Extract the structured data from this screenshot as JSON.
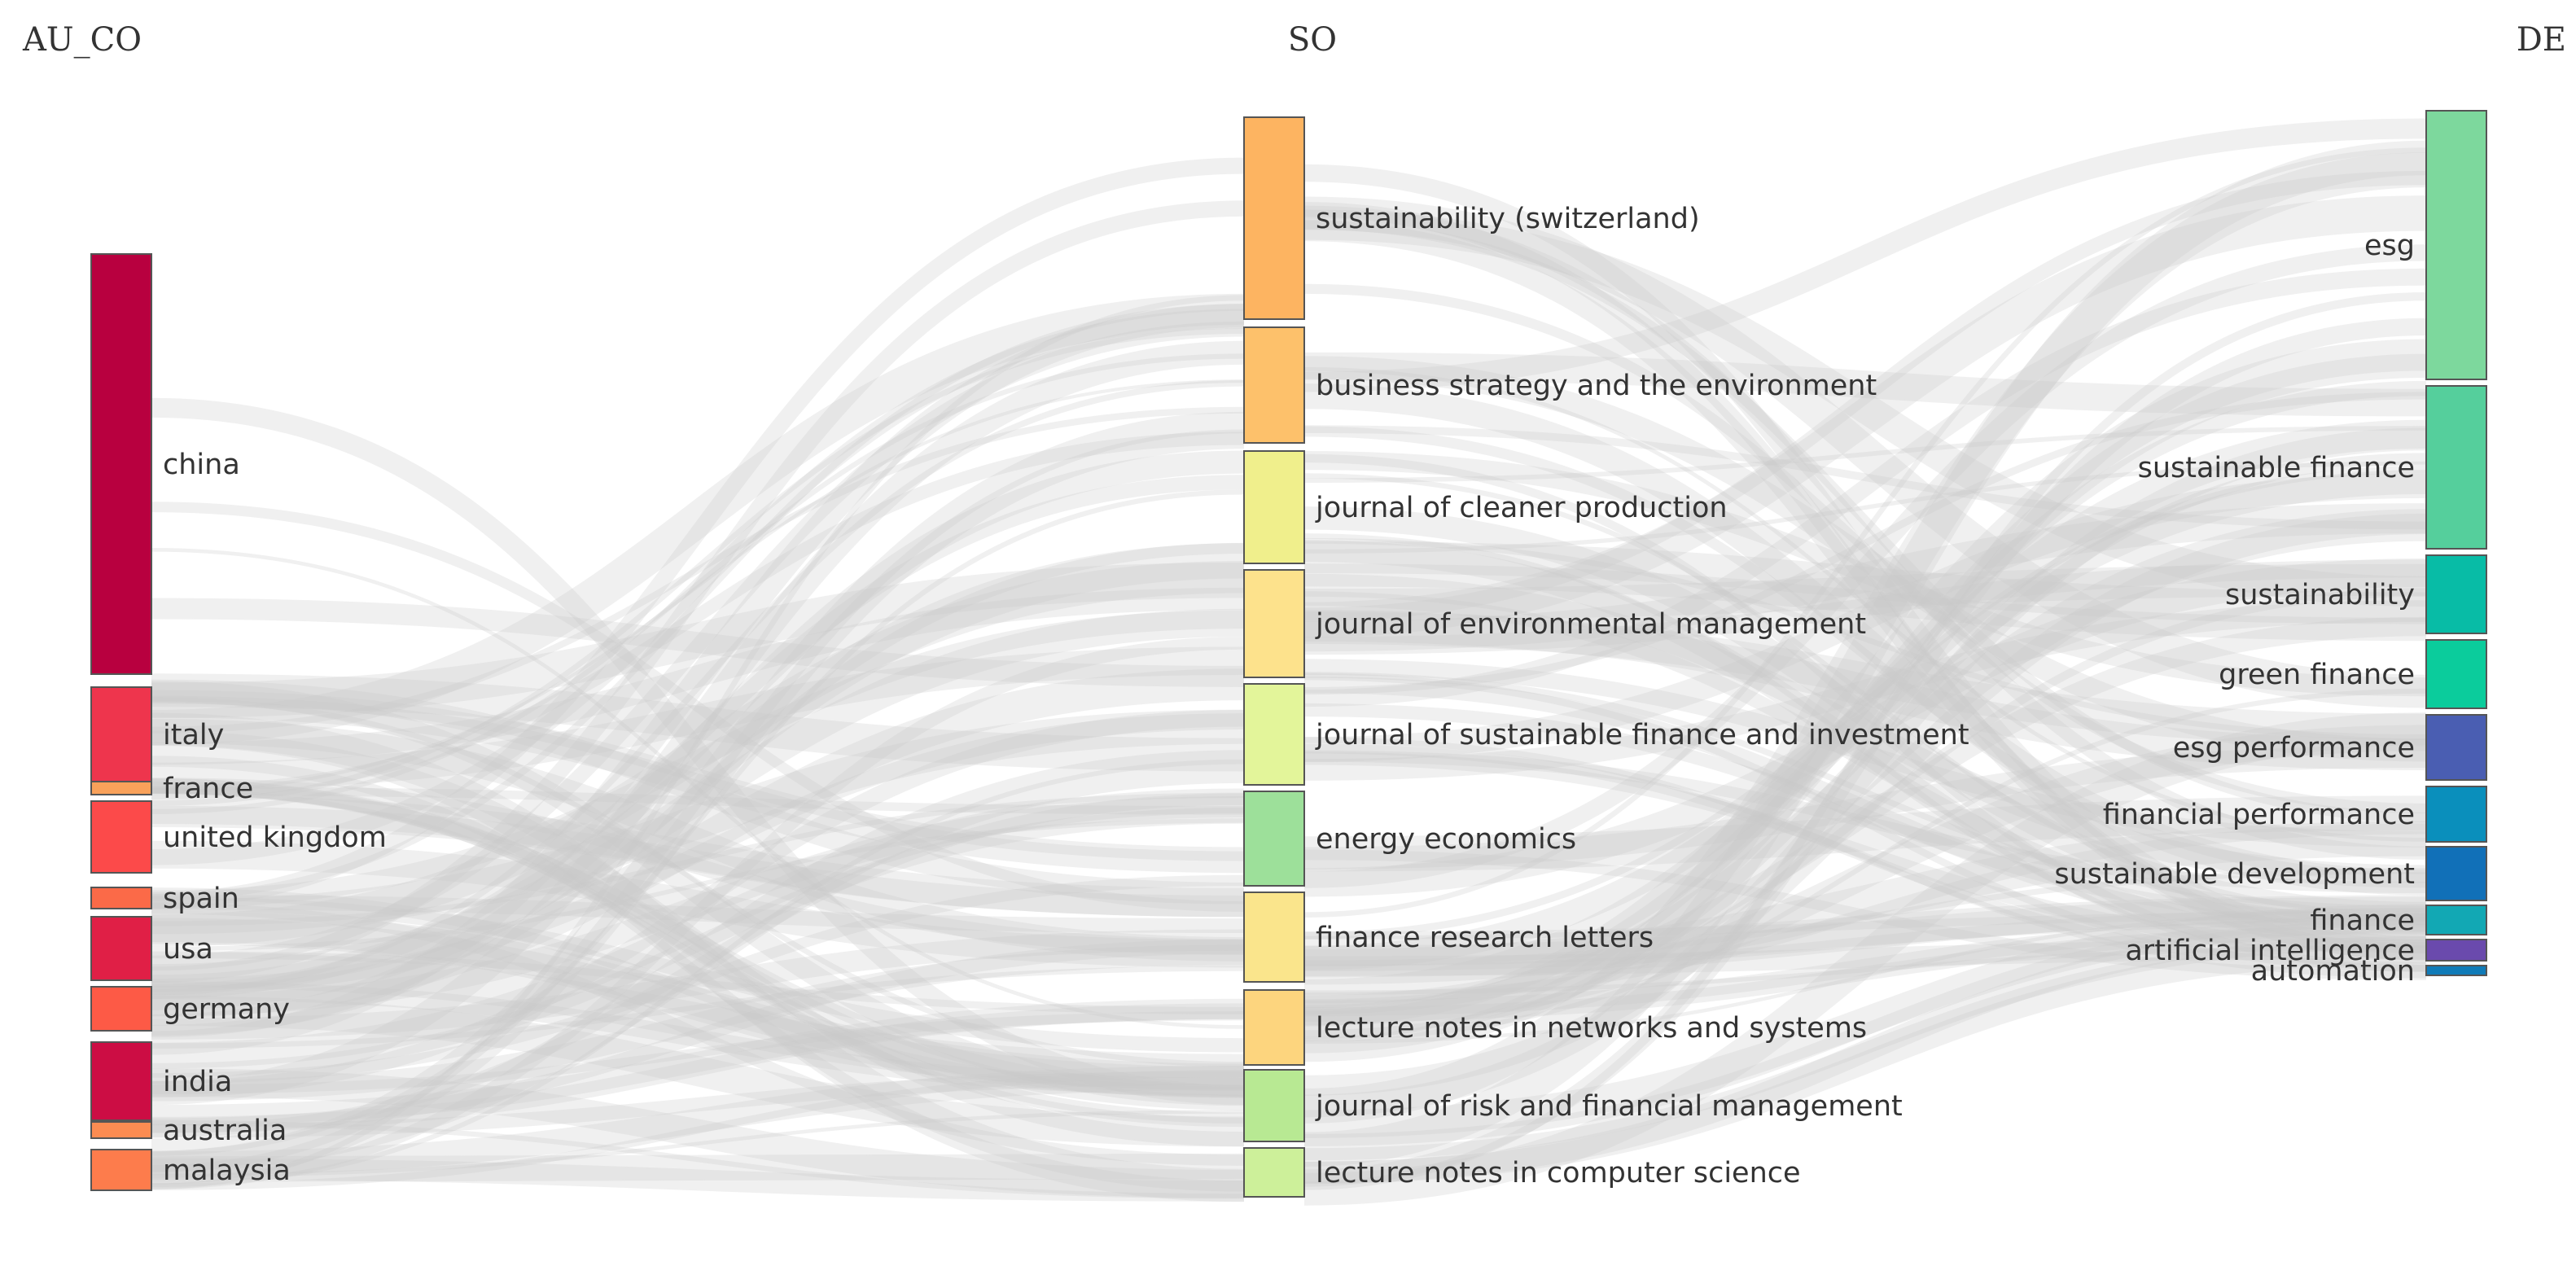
{
  "chart_data": {
    "type": "sankey",
    "columns": [
      {
        "title": "AU_CO",
        "nodes": [
          {
            "name": "china",
            "color": "#b8003f"
          },
          {
            "name": "italy",
            "color": "#ee354d"
          },
          {
            "name": "france",
            "color": "#f9a15a"
          },
          {
            "name": "united kingdom",
            "color": "#fc4a4a"
          },
          {
            "name": "spain",
            "color": "#fb6a48"
          },
          {
            "name": "usa",
            "color": "#e01f46"
          },
          {
            "name": "germany",
            "color": "#fd5a46"
          },
          {
            "name": "india",
            "color": "#cc0d44"
          },
          {
            "name": "australia",
            "color": "#fb8c52"
          },
          {
            "name": "malaysia",
            "color": "#fd7c4c"
          }
        ]
      },
      {
        "title": "SO",
        "nodes": [
          {
            "name": "sustainability (switzerland)",
            "color": "#fdb461"
          },
          {
            "name": "business strategy and the environment",
            "color": "#fdc16b"
          },
          {
            "name": "journal of cleaner production",
            "color": "#f0ef8c"
          },
          {
            "name": "journal of environmental management",
            "color": "#fde28c"
          },
          {
            "name": "journal of sustainable finance and investment",
            "color": "#e3f59a"
          },
          {
            "name": "energy economics",
            "color": "#9de09a"
          },
          {
            "name": "finance research letters",
            "color": "#fae58c"
          },
          {
            "name": "lecture notes in networks and systems",
            "color": "#fdd57e"
          },
          {
            "name": "journal of risk and financial management",
            "color": "#b8e993"
          },
          {
            "name": "lecture notes in computer science",
            "color": "#cdf09a"
          }
        ]
      },
      {
        "title": "DE",
        "nodes": [
          {
            "name": "esg",
            "color": "#7dd89d"
          },
          {
            "name": "sustainable finance",
            "color": "#55cf9c"
          },
          {
            "name": "sustainability",
            "color": "#08bca6"
          },
          {
            "name": "green finance",
            "color": "#0bcc9c"
          },
          {
            "name": "esg performance",
            "color": "#4a5eb2"
          },
          {
            "name": "financial performance",
            "color": "#0a8fbc"
          },
          {
            "name": "sustainable development",
            "color": "#1170b8"
          },
          {
            "name": "finance",
            "color": "#12a8b4"
          },
          {
            "name": "artificial intelligence",
            "color": "#6a4aad"
          },
          {
            "name": "automation",
            "color": "#107bb8"
          }
        ]
      }
    ],
    "link_color": "#c8c8c8"
  }
}
